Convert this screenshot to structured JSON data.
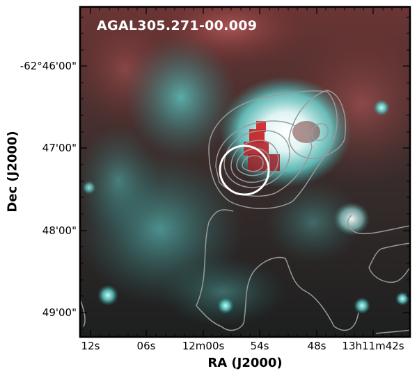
{
  "image": {
    "source_name": "AGAL305.271-00.009",
    "x_axis_label": "RA (J2000)",
    "y_axis_label": "Dec (J2000)",
    "x_tick_labels": [
      "12s",
      "06s",
      "12m00s",
      "54s",
      "48s",
      "13h11m42s"
    ],
    "y_tick_labels": [
      "-62°46'00\"",
      "47'00\"",
      "48'00\"",
      "49'00\""
    ],
    "colors": {
      "cyan_emission": "#6ff2ee",
      "red_emission": "#c8282a",
      "contour": "#9a9a9a",
      "circle": "#ffffff",
      "frame": "#000000"
    }
  }
}
